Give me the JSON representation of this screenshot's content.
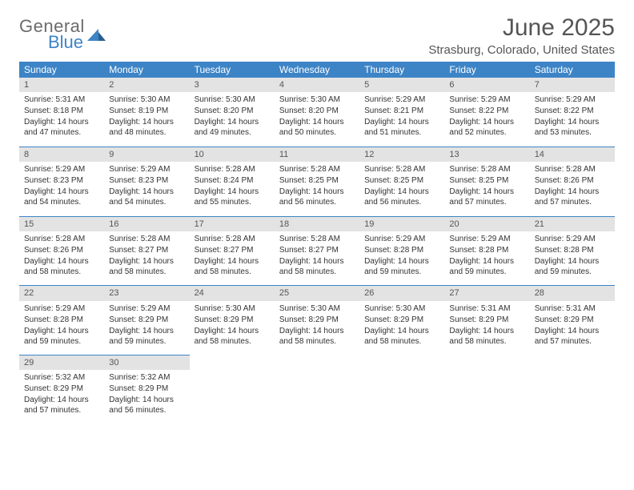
{
  "logo": {
    "word1": "General",
    "word2": "Blue"
  },
  "title": "June 2025",
  "subtitle": "Strasburg, Colorado, United States",
  "colors": {
    "header_bg": "#3d84c6",
    "header_text": "#ffffff",
    "daynum_bg": "#e3e3e3",
    "border": "#3d84c6",
    "text": "#333333",
    "title_text": "#555555"
  },
  "day_headers": [
    "Sunday",
    "Monday",
    "Tuesday",
    "Wednesday",
    "Thursday",
    "Friday",
    "Saturday"
  ],
  "weeks": [
    [
      {
        "n": "1",
        "sr": "5:31 AM",
        "ss": "8:18 PM",
        "dl": "14 hours and 47 minutes."
      },
      {
        "n": "2",
        "sr": "5:30 AM",
        "ss": "8:19 PM",
        "dl": "14 hours and 48 minutes."
      },
      {
        "n": "3",
        "sr": "5:30 AM",
        "ss": "8:20 PM",
        "dl": "14 hours and 49 minutes."
      },
      {
        "n": "4",
        "sr": "5:30 AM",
        "ss": "8:20 PM",
        "dl": "14 hours and 50 minutes."
      },
      {
        "n": "5",
        "sr": "5:29 AM",
        "ss": "8:21 PM",
        "dl": "14 hours and 51 minutes."
      },
      {
        "n": "6",
        "sr": "5:29 AM",
        "ss": "8:22 PM",
        "dl": "14 hours and 52 minutes."
      },
      {
        "n": "7",
        "sr": "5:29 AM",
        "ss": "8:22 PM",
        "dl": "14 hours and 53 minutes."
      }
    ],
    [
      {
        "n": "8",
        "sr": "5:29 AM",
        "ss": "8:23 PM",
        "dl": "14 hours and 54 minutes."
      },
      {
        "n": "9",
        "sr": "5:29 AM",
        "ss": "8:23 PM",
        "dl": "14 hours and 54 minutes."
      },
      {
        "n": "10",
        "sr": "5:28 AM",
        "ss": "8:24 PM",
        "dl": "14 hours and 55 minutes."
      },
      {
        "n": "11",
        "sr": "5:28 AM",
        "ss": "8:25 PM",
        "dl": "14 hours and 56 minutes."
      },
      {
        "n": "12",
        "sr": "5:28 AM",
        "ss": "8:25 PM",
        "dl": "14 hours and 56 minutes."
      },
      {
        "n": "13",
        "sr": "5:28 AM",
        "ss": "8:25 PM",
        "dl": "14 hours and 57 minutes."
      },
      {
        "n": "14",
        "sr": "5:28 AM",
        "ss": "8:26 PM",
        "dl": "14 hours and 57 minutes."
      }
    ],
    [
      {
        "n": "15",
        "sr": "5:28 AM",
        "ss": "8:26 PM",
        "dl": "14 hours and 58 minutes."
      },
      {
        "n": "16",
        "sr": "5:28 AM",
        "ss": "8:27 PM",
        "dl": "14 hours and 58 minutes."
      },
      {
        "n": "17",
        "sr": "5:28 AM",
        "ss": "8:27 PM",
        "dl": "14 hours and 58 minutes."
      },
      {
        "n": "18",
        "sr": "5:28 AM",
        "ss": "8:27 PM",
        "dl": "14 hours and 58 minutes."
      },
      {
        "n": "19",
        "sr": "5:29 AM",
        "ss": "8:28 PM",
        "dl": "14 hours and 59 minutes."
      },
      {
        "n": "20",
        "sr": "5:29 AM",
        "ss": "8:28 PM",
        "dl": "14 hours and 59 minutes."
      },
      {
        "n": "21",
        "sr": "5:29 AM",
        "ss": "8:28 PM",
        "dl": "14 hours and 59 minutes."
      }
    ],
    [
      {
        "n": "22",
        "sr": "5:29 AM",
        "ss": "8:28 PM",
        "dl": "14 hours and 59 minutes."
      },
      {
        "n": "23",
        "sr": "5:29 AM",
        "ss": "8:29 PM",
        "dl": "14 hours and 59 minutes."
      },
      {
        "n": "24",
        "sr": "5:30 AM",
        "ss": "8:29 PM",
        "dl": "14 hours and 58 minutes."
      },
      {
        "n": "25",
        "sr": "5:30 AM",
        "ss": "8:29 PM",
        "dl": "14 hours and 58 minutes."
      },
      {
        "n": "26",
        "sr": "5:30 AM",
        "ss": "8:29 PM",
        "dl": "14 hours and 58 minutes."
      },
      {
        "n": "27",
        "sr": "5:31 AM",
        "ss": "8:29 PM",
        "dl": "14 hours and 58 minutes."
      },
      {
        "n": "28",
        "sr": "5:31 AM",
        "ss": "8:29 PM",
        "dl": "14 hours and 57 minutes."
      }
    ],
    [
      {
        "n": "29",
        "sr": "5:32 AM",
        "ss": "8:29 PM",
        "dl": "14 hours and 57 minutes."
      },
      {
        "n": "30",
        "sr": "5:32 AM",
        "ss": "8:29 PM",
        "dl": "14 hours and 56 minutes."
      },
      null,
      null,
      null,
      null,
      null
    ]
  ],
  "labels": {
    "sunrise": "Sunrise:",
    "sunset": "Sunset:",
    "daylight": "Daylight:"
  }
}
